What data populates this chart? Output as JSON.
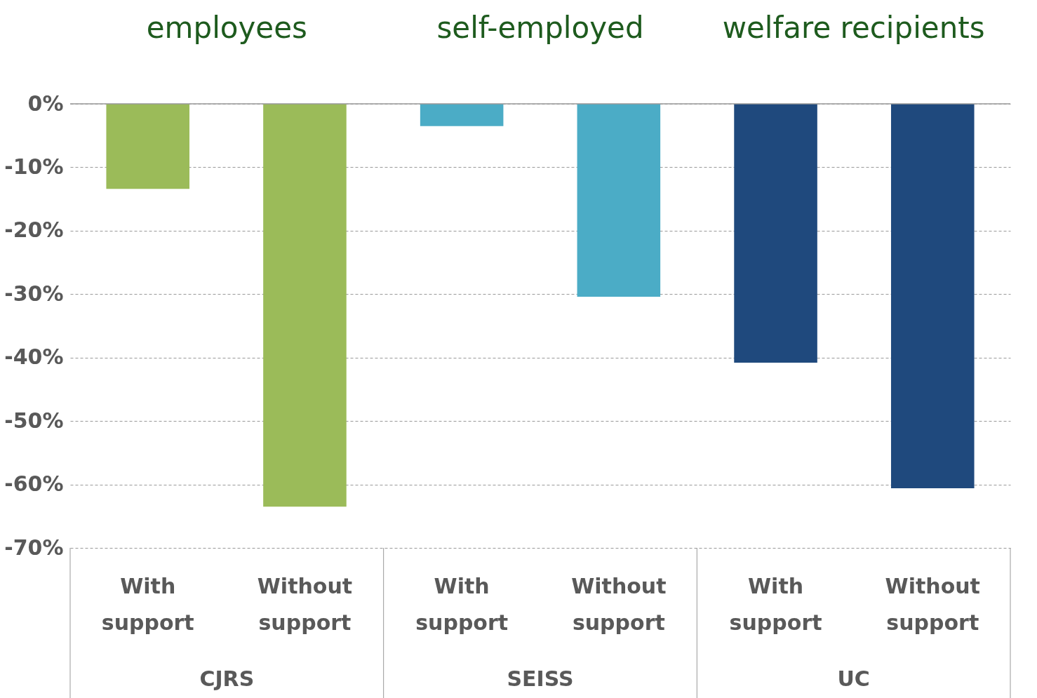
{
  "chart_data": {
    "type": "bar",
    "categories": [
      "With support",
      "Without support",
      "With support",
      "Without support",
      "With support",
      "Without support"
    ],
    "values": [
      -13.4,
      -63.5,
      -3.5,
      -30.4,
      -40.8,
      -60.6
    ],
    "colors": [
      "#9bbb59",
      "#9bbb59",
      "#4bacc6",
      "#4bacc6",
      "#1f497d",
      "#1f497d"
    ],
    "ylim": [
      -70,
      0
    ],
    "yticks": [
      {
        "value": 0,
        "label": "0%"
      },
      {
        "value": -10,
        "label": "-10%"
      },
      {
        "value": -20,
        "label": "-20%"
      },
      {
        "value": -30,
        "label": "-30%"
      },
      {
        "value": -40,
        "label": "-40%"
      },
      {
        "value": -50,
        "label": "-50%"
      },
      {
        "value": -60,
        "label": "-60%"
      },
      {
        "value": -70,
        "label": "-70%"
      }
    ],
    "grid": "y",
    "annotations": [
      "employees",
      "self-employed",
      "welfare recipients",
      "CJRS",
      "SEISS",
      "UC"
    ]
  }
}
